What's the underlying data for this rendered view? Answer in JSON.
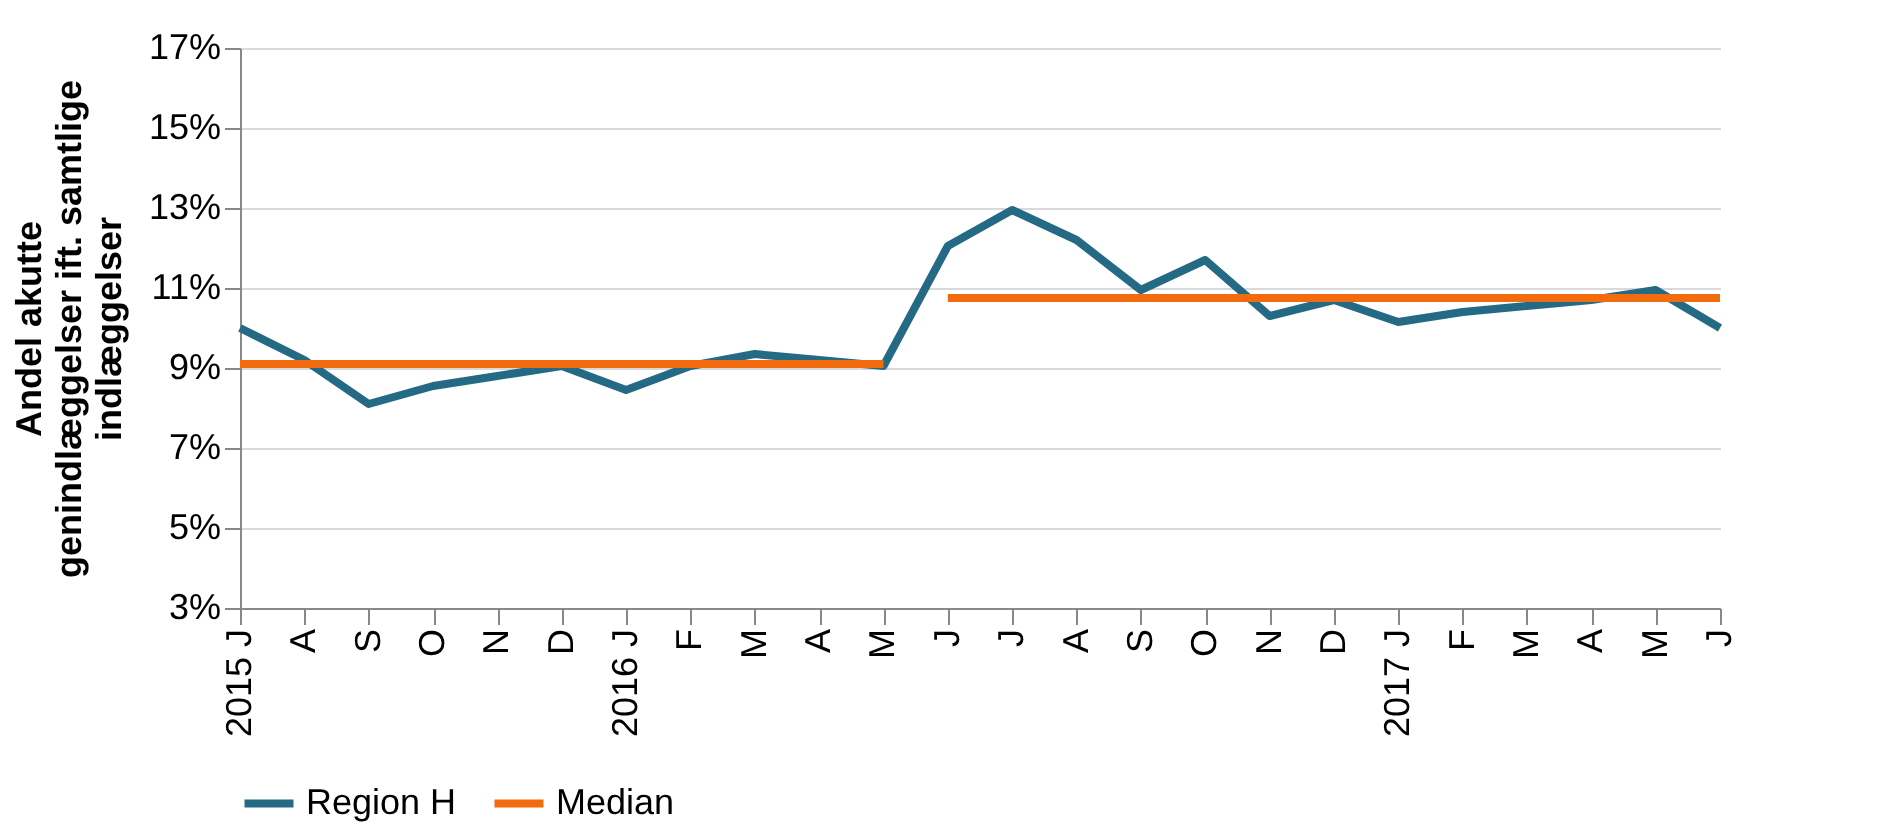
{
  "chart_data": {
    "type": "line",
    "ylabel": "Andel akutte\ngenindlæggelser ift. samtlige\nindlæggelser",
    "categories": [
      "2015 J",
      "A",
      "S",
      "O",
      "N",
      "D",
      "2016 J",
      "F",
      "M",
      "A",
      "M",
      "J",
      "J",
      "A",
      "S",
      "O",
      "N",
      "D",
      "2017 J",
      "F",
      "M",
      "A",
      "M",
      "J"
    ],
    "series": [
      {
        "name": "Region H",
        "color": "#246a84",
        "values": [
          10.0,
          9.2,
          8.1,
          8.55,
          8.8,
          9.05,
          8.45,
          9.05,
          9.35,
          9.2,
          9.05,
          12.05,
          12.95,
          12.2,
          10.95,
          11.7,
          10.3,
          10.7,
          10.15,
          10.4,
          10.55,
          10.7,
          10.95,
          10.0
        ]
      },
      {
        "name": "Median",
        "color": "#f26b0f",
        "values": [
          9.1,
          9.1,
          9.1,
          9.1,
          9.1,
          9.1,
          9.1,
          9.1,
          9.1,
          9.1,
          9.1,
          null,
          null,
          null,
          null,
          null,
          null,
          null,
          null,
          null,
          null,
          null,
          null,
          null
        ]
      },
      {
        "color": "#f26b0f",
        "values": [
          null,
          null,
          null,
          null,
          null,
          null,
          null,
          null,
          null,
          null,
          null,
          10.75,
          10.75,
          10.75,
          10.75,
          10.75,
          10.75,
          10.75,
          10.75,
          10.75,
          10.75,
          10.75,
          10.75,
          10.75
        ]
      }
    ],
    "ylim": [
      3,
      17
    ],
    "yticks": [
      {
        "value": 3,
        "label": "3%"
      },
      {
        "value": 5,
        "label": "5%"
      },
      {
        "value": 7,
        "label": "7%"
      },
      {
        "value": 9,
        "label": "9%"
      },
      {
        "value": 11,
        "label": "11%"
      },
      {
        "value": 13,
        "label": "13%"
      },
      {
        "value": 15,
        "label": "15%"
      },
      {
        "value": 17,
        "label": "17%"
      }
    ],
    "grid": "y",
    "legend": "bottom",
    "line_style": "solid",
    "marker": "none"
  }
}
